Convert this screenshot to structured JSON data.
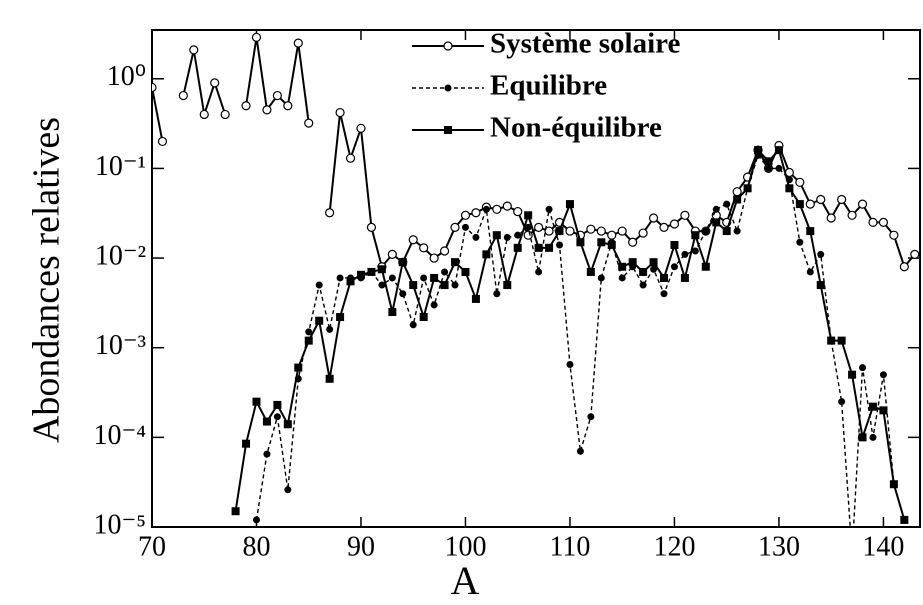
{
  "chart_data": {
    "type": "line",
    "xlabel": "A",
    "ylabel": "Abondances relatives",
    "x": [
      70,
      71,
      72,
      73,
      74,
      75,
      76,
      77,
      78,
      79,
      80,
      81,
      82,
      83,
      84,
      85,
      86,
      87,
      88,
      89,
      90,
      91,
      92,
      93,
      94,
      95,
      96,
      97,
      98,
      99,
      100,
      101,
      102,
      103,
      104,
      105,
      106,
      107,
      108,
      109,
      110,
      111,
      112,
      113,
      114,
      115,
      116,
      117,
      118,
      119,
      120,
      121,
      122,
      123,
      124,
      125,
      126,
      127,
      128,
      129,
      130,
      131,
      132,
      133,
      134,
      135,
      136,
      137,
      138,
      139,
      140,
      141,
      142,
      143
    ],
    "series": [
      {
        "name": "Système solaire",
        "color": "#000000",
        "linestyle": "solid",
        "marker": "circle-open",
        "values": [
          0.8,
          0.2,
          null,
          0.65,
          2.1,
          0.4,
          0.9,
          0.4,
          null,
          0.5,
          2.9,
          0.45,
          0.65,
          0.5,
          2.5,
          0.32,
          null,
          0.032,
          0.42,
          0.13,
          0.28,
          0.022,
          0.008,
          0.011,
          0.009,
          0.016,
          0.013,
          0.01,
          0.012,
          0.022,
          0.03,
          0.032,
          0.037,
          0.035,
          0.038,
          0.033,
          0.018,
          0.022,
          0.02,
          0.025,
          0.02,
          0.018,
          0.021,
          0.02,
          0.018,
          0.02,
          0.015,
          0.019,
          0.028,
          0.022,
          0.024,
          0.03,
          0.02,
          0.02,
          0.03,
          0.025,
          0.055,
          0.08,
          0.16,
          0.1,
          0.18,
          0.09,
          0.07,
          0.04,
          0.045,
          0.028,
          0.045,
          0.03,
          0.04,
          0.025,
          0.025,
          0.018,
          0.008,
          0.011
        ]
      },
      {
        "name": "Equilibre",
        "color": "#000000",
        "linestyle": "dashed",
        "marker": "dot",
        "values": [
          null,
          null,
          null,
          null,
          null,
          null,
          null,
          null,
          null,
          null,
          1.2e-05,
          6.5e-05,
          0.00017,
          2.6e-05,
          0.00045,
          0.0015,
          0.005,
          0.0016,
          0.006,
          0.006,
          0.006,
          0.007,
          0.005,
          0.006,
          0.004,
          0.0018,
          0.006,
          0.003,
          0.007,
          0.005,
          0.022,
          0.017,
          0.035,
          0.004,
          0.017,
          0.018,
          0.022,
          0.007,
          0.035,
          0.014,
          0.00065,
          7e-05,
          0.00017,
          0.006,
          0.015,
          0.006,
          0.008,
          0.005,
          0.0075,
          0.004,
          0.008,
          0.011,
          0.012,
          0.02,
          0.035,
          0.04,
          0.02,
          0.06,
          0.14,
          0.1,
          0.1,
          0.075,
          0.015,
          0.007,
          0.011,
          0.0012,
          0.00025,
          5e-06,
          0.0006,
          0.0001,
          0.0005,
          3e-05,
          null,
          null
        ]
      },
      {
        "name": "Non-équilibre",
        "color": "#000000",
        "linestyle": "solid",
        "marker": "square",
        "values": [
          null,
          null,
          null,
          null,
          null,
          null,
          null,
          null,
          1.5e-05,
          8.5e-05,
          0.00025,
          0.00015,
          0.00023,
          0.00014,
          0.0006,
          0.0012,
          0.002,
          0.00045,
          0.0022,
          0.0055,
          0.0065,
          0.007,
          0.0075,
          0.0025,
          0.009,
          0.005,
          0.0022,
          0.006,
          0.005,
          0.009,
          0.007,
          0.0035,
          0.011,
          0.018,
          0.005,
          0.013,
          0.03,
          0.013,
          0.013,
          0.02,
          0.04,
          0.015,
          0.007,
          0.015,
          0.014,
          0.008,
          0.009,
          0.007,
          0.009,
          0.006,
          0.014,
          0.006,
          0.018,
          0.008,
          0.025,
          0.02,
          0.045,
          0.06,
          0.16,
          0.12,
          0.16,
          0.06,
          0.04,
          0.02,
          0.005,
          0.0012,
          0.0012,
          0.0005,
          0.0001,
          0.00022,
          0.0002,
          3e-05,
          1.2e-05,
          null
        ]
      }
    ],
    "xlim": [
      70,
      143.5
    ],
    "xticks": [
      70,
      80,
      90,
      100,
      110,
      120,
      130,
      140
    ],
    "ylim": [
      1e-05,
      3.5
    ],
    "ylog": true,
    "yticks": [
      {
        "value": 1e-05,
        "label": "10⁻⁵"
      },
      {
        "value": 0.0001,
        "label": "10⁻⁴"
      },
      {
        "value": 0.001,
        "label": "10⁻³"
      },
      {
        "value": 0.01,
        "label": "10⁻²"
      },
      {
        "value": 0.1,
        "label": "10⁻¹"
      },
      {
        "value": 1,
        "label": "10⁰"
      }
    ],
    "legend": "upper center"
  }
}
